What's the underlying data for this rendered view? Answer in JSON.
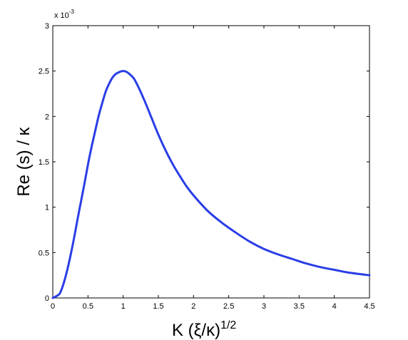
{
  "chart_data": {
    "type": "line",
    "xlabel_main": "K (ξ/κ)",
    "xlabel_superscript": "1/2",
    "ylabel": "Re (s) / κ",
    "y_multiplier_prefix": "x 10",
    "y_multiplier_exponent": "-3",
    "xlim": [
      0,
      4.5
    ],
    "ylim": [
      0,
      3
    ],
    "xticks": [
      "0",
      "0.5",
      "1",
      "1.5",
      "2",
      "2.5",
      "3",
      "3.5",
      "4",
      "4.5"
    ],
    "yticks": [
      "0",
      "0.5",
      "1",
      "1.5",
      "2",
      "2.5",
      "3"
    ],
    "grid": false,
    "series": [
      {
        "color": "#2a3ee6",
        "x": [
          0,
          0.05,
          0.1,
          0.15,
          0.2,
          0.25,
          0.3,
          0.35,
          0.4,
          0.45,
          0.5,
          0.55,
          0.6,
          0.65,
          0.7,
          0.75,
          0.8,
          0.85,
          0.9,
          0.95,
          1.0,
          1.05,
          1.1,
          1.15,
          1.2,
          1.3,
          1.4,
          1.5,
          1.6,
          1.7,
          1.8,
          1.9,
          2.0,
          2.2,
          2.4,
          2.6,
          2.8,
          3.0,
          3.2,
          3.4,
          3.6,
          3.8,
          4.0,
          4.2,
          4.5
        ],
        "y": [
          0,
          0.02,
          0.05,
          0.15,
          0.29,
          0.46,
          0.65,
          0.86,
          1.06,
          1.26,
          1.47,
          1.66,
          1.83,
          2.0,
          2.14,
          2.27,
          2.36,
          2.43,
          2.47,
          2.49,
          2.5,
          2.49,
          2.46,
          2.42,
          2.35,
          2.18,
          1.99,
          1.8,
          1.63,
          1.48,
          1.35,
          1.23,
          1.13,
          0.96,
          0.83,
          0.72,
          0.62,
          0.54,
          0.48,
          0.43,
          0.38,
          0.34,
          0.31,
          0.28,
          0.25
        ]
      }
    ]
  }
}
